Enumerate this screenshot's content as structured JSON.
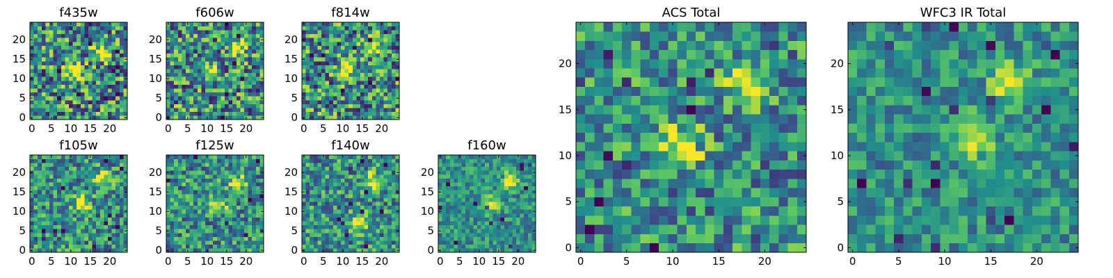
{
  "figure": {
    "colormap": "viridis",
    "colormap_stops": [
      "#440154",
      "#3b528b",
      "#21918c",
      "#5ec962",
      "#fde725"
    ]
  },
  "chart_data": [
    {
      "type": "heatmap",
      "title": "f435w",
      "grid_size": 25,
      "xlim": [
        0,
        24
      ],
      "ylim": [
        0,
        24
      ],
      "xticks": [
        0,
        5,
        10,
        15,
        20
      ],
      "yticks": [
        0,
        5,
        10,
        15,
        20
      ],
      "bright_sources": [
        {
          "x": 18,
          "y": 17
        },
        {
          "x": 11,
          "y": 12
        }
      ],
      "noise_level": "high"
    },
    {
      "type": "heatmap",
      "title": "f606w",
      "grid_size": 25,
      "xlim": [
        0,
        24
      ],
      "ylim": [
        0,
        24
      ],
      "xticks": [
        0,
        5,
        10,
        15,
        20
      ],
      "yticks": [
        0,
        5,
        10,
        15,
        20
      ],
      "bright_sources": [
        {
          "x": 18,
          "y": 18
        },
        {
          "x": 11,
          "y": 12
        }
      ],
      "noise_level": "high"
    },
    {
      "type": "heatmap",
      "title": "f814w",
      "grid_size": 25,
      "xlim": [
        0,
        24
      ],
      "ylim": [
        0,
        24
      ],
      "xticks": [
        0,
        5,
        10,
        15,
        20
      ],
      "yticks": [
        0,
        5,
        10,
        15,
        20
      ],
      "bright_sources": [
        {
          "x": 18,
          "y": 18
        },
        {
          "x": 11,
          "y": 12
        }
      ],
      "noise_level": "high"
    },
    {
      "type": "heatmap",
      "title": "f105w",
      "grid_size": 25,
      "xlim": [
        0,
        24
      ],
      "ylim": [
        0,
        24
      ],
      "xticks": [
        0,
        5,
        10,
        15,
        20
      ],
      "yticks": [
        0,
        5,
        10,
        15,
        20
      ],
      "bright_sources": [
        {
          "x": 18,
          "y": 18
        },
        {
          "x": 13,
          "y": 12
        }
      ],
      "noise_level": "medium"
    },
    {
      "type": "heatmap",
      "title": "f125w",
      "grid_size": 25,
      "xlim": [
        0,
        24
      ],
      "ylim": [
        0,
        24
      ],
      "xticks": [
        0,
        5,
        10,
        15,
        20
      ],
      "yticks": [
        0,
        5,
        10,
        15,
        20
      ],
      "bright_sources": [
        {
          "x": 18,
          "y": 18
        },
        {
          "x": 13,
          "y": 12
        }
      ],
      "noise_level": "medium"
    },
    {
      "type": "heatmap",
      "title": "f140w",
      "grid_size": 25,
      "xlim": [
        0,
        24
      ],
      "ylim": [
        0,
        24
      ],
      "xticks": [
        0,
        5,
        10,
        15,
        20
      ],
      "yticks": [
        0,
        5,
        10,
        15,
        20
      ],
      "bright_sources": [
        {
          "x": 18,
          "y": 18
        },
        {
          "x": 14,
          "y": 7
        }
      ],
      "noise_level": "medium"
    },
    {
      "type": "heatmap",
      "title": "f160w",
      "grid_size": 25,
      "xlim": [
        0,
        24
      ],
      "ylim": [
        0,
        24
      ],
      "xticks": [
        0,
        5,
        10,
        15,
        20
      ],
      "yticks": [
        0,
        5,
        10,
        15,
        20
      ],
      "bright_sources": [
        {
          "x": 18,
          "y": 18
        },
        {
          "x": 13,
          "y": 12
        }
      ],
      "noise_level": "low"
    },
    {
      "type": "heatmap",
      "title": "ACS Total",
      "grid_size": 25,
      "xlim": [
        0,
        24
      ],
      "ylim": [
        0,
        24
      ],
      "xticks": [
        0,
        5,
        10,
        15,
        20
      ],
      "yticks": [
        0,
        5,
        10,
        15,
        20
      ],
      "bright_sources": [
        {
          "x": 18,
          "y": 18
        },
        {
          "x": 11,
          "y": 11
        }
      ],
      "noise_level": "medium"
    },
    {
      "type": "heatmap",
      "title": "WFC3 IR Total",
      "grid_size": 25,
      "xlim": [
        0,
        24
      ],
      "ylim": [
        0,
        24
      ],
      "xticks": [
        0,
        5,
        10,
        15,
        20
      ],
      "yticks": [
        0,
        5,
        10,
        15,
        20
      ],
      "bright_sources": [
        {
          "x": 17,
          "y": 18
        },
        {
          "x": 13,
          "y": 12
        }
      ],
      "noise_level": "low"
    }
  ]
}
